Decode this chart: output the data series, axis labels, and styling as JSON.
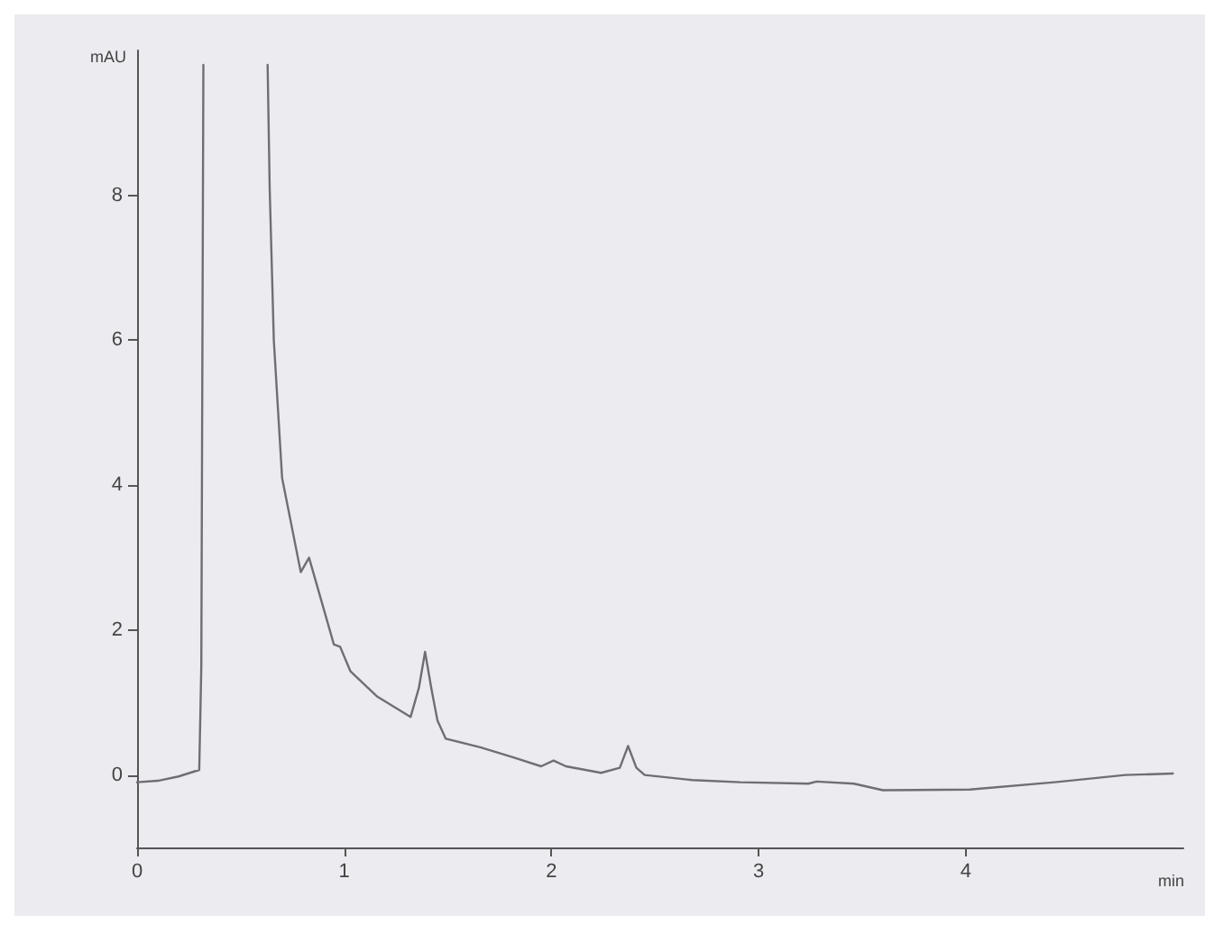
{
  "chart_data": {
    "type": "line",
    "xlabel": "min",
    "ylabel": "mAU",
    "xlim": [
      0,
      5.05
    ],
    "ylim": [
      -1,
      10
    ],
    "xticks": [
      0,
      1,
      2,
      3,
      4
    ],
    "yticks": [
      0,
      2,
      4,
      6,
      8
    ],
    "grid": false,
    "marker": "none",
    "line_style": "solid",
    "x": [
      0,
      0.1,
      0.2,
      0.3,
      0.31,
      0.32,
      0.33,
      0.6,
      0.63,
      0.64,
      0.66,
      0.7,
      0.79,
      0.83,
      0.93,
      0.95,
      0.98,
      1.03,
      1.16,
      1.32,
      1.36,
      1.39,
      1.42,
      1.45,
      1.49,
      1.66,
      1.82,
      1.95,
      2.01,
      2.07,
      2.24,
      2.33,
      2.37,
      2.41,
      2.45,
      2.68,
      2.91,
      3.24,
      3.28,
      3.46,
      3.6,
      4.02,
      4.43,
      4.77,
      5.0
    ],
    "series": [
      {
        "color": "#6e6e74",
        "values": [
          -0.1,
          -0.08,
          -0.02,
          0.07,
          1.5,
          9.8,
          null,
          null,
          9.8,
          8.1,
          6.0,
          4.1,
          2.8,
          3.0,
          2.0,
          1.8,
          1.77,
          1.43,
          1.08,
          0.8,
          1.2,
          1.7,
          1.2,
          0.75,
          0.5,
          0.38,
          0.24,
          0.12,
          0.2,
          0.12,
          0.03,
          0.1,
          0.4,
          0.1,
          0.0,
          -0.07,
          -0.1,
          -0.12,
          -0.09,
          -0.12,
          -0.21,
          -0.2,
          -0.1,
          0.0,
          0.02
        ]
      }
    ]
  }
}
